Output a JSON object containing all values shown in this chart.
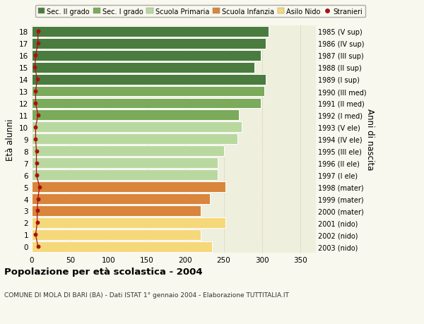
{
  "ages": [
    18,
    17,
    16,
    15,
    14,
    13,
    12,
    11,
    10,
    9,
    8,
    7,
    6,
    5,
    4,
    3,
    2,
    1,
    0
  ],
  "values": [
    308,
    305,
    298,
    290,
    305,
    303,
    298,
    270,
    273,
    268,
    250,
    242,
    242,
    252,
    232,
    220,
    252,
    220,
    235
  ],
  "stranieri": [
    8,
    8,
    5,
    4,
    7,
    5,
    5,
    8,
    5,
    5,
    6,
    6,
    6,
    10,
    8,
    7,
    7,
    5,
    8
  ],
  "right_labels": [
    "1985 (V sup)",
    "1986 (IV sup)",
    "1987 (III sup)",
    "1988 (II sup)",
    "1989 (I sup)",
    "1990 (III med)",
    "1991 (II med)",
    "1992 (I med)",
    "1993 (V ele)",
    "1994 (IV ele)",
    "1995 (III ele)",
    "1996 (II ele)",
    "1997 (I ele)",
    "1998 (mater)",
    "1999 (mater)",
    "2000 (mater)",
    "2001 (nido)",
    "2002 (nido)",
    "2003 (nido)"
  ],
  "bar_colors": [
    "#4a7c3f",
    "#4a7c3f",
    "#4a7c3f",
    "#4a7c3f",
    "#4a7c3f",
    "#7aaa5a",
    "#7aaa5a",
    "#7aaa5a",
    "#b8d8a0",
    "#b8d8a0",
    "#b8d8a0",
    "#b8d8a0",
    "#b8d8a0",
    "#d9853b",
    "#d9853b",
    "#d9853b",
    "#f5d87a",
    "#f5d87a",
    "#f5d87a"
  ],
  "legend_colors": [
    "#4a7c3f",
    "#7aaa5a",
    "#b8d8a0",
    "#d9853b",
    "#f5d87a",
    "#cc2222"
  ],
  "legend_labels": [
    "Sec. II grado",
    "Sec. I grado",
    "Scuola Primaria",
    "Scuola Infanzia",
    "Asilo Nido",
    "Stranieri"
  ],
  "title": "Popolazione per età scolastica - 2004",
  "subtitle": "COMUNE DI MOLA DI BARI (BA) - Dati ISTAT 1° gennaio 2004 - Elaborazione TUTTITALIA.IT",
  "ylabel": "Età alunni",
  "right_ylabel": "Anni di nascita",
  "xlim": [
    0,
    370
  ],
  "xticks": [
    0,
    50,
    100,
    150,
    200,
    250,
    300,
    350
  ],
  "background_color": "#f8f8ee",
  "bar_bg_color": "#efefde",
  "stranieri_color": "#aa1111"
}
